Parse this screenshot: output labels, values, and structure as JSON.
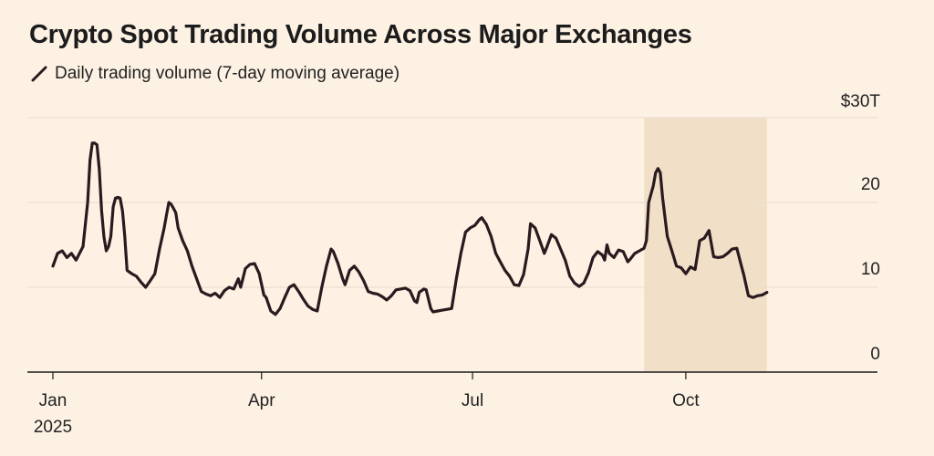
{
  "chart_data": {
    "type": "line",
    "title": "Crypto Spot Trading Volume Across Major Exchanges",
    "series": [
      {
        "name": "Daily trading volume (7-day moving average)",
        "unit": "trillion USD",
        "points": [
          [
            0,
            12.5
          ],
          [
            2,
            14
          ],
          [
            4,
            14.3
          ],
          [
            6,
            13.5
          ],
          [
            8,
            14
          ],
          [
            10,
            13.2
          ],
          [
            13,
            14.8
          ],
          [
            15,
            20
          ],
          [
            16,
            25
          ],
          [
            17,
            27
          ],
          [
            18,
            27
          ],
          [
            19,
            26.8
          ],
          [
            20,
            24
          ],
          [
            21,
            19
          ],
          [
            22,
            16
          ],
          [
            23,
            14.3
          ],
          [
            24,
            14.8
          ],
          [
            25,
            16
          ],
          [
            26,
            19.5
          ],
          [
            27,
            20.5
          ],
          [
            28,
            20.6
          ],
          [
            29,
            20.5
          ],
          [
            30,
            19
          ],
          [
            31,
            16
          ],
          [
            32,
            12
          ],
          [
            34,
            11.6
          ],
          [
            36,
            11.3
          ],
          [
            38,
            10.6
          ],
          [
            40,
            10
          ],
          [
            42,
            10.8
          ],
          [
            44,
            11.6
          ],
          [
            46,
            14.5
          ],
          [
            48,
            17
          ],
          [
            49,
            18.5
          ],
          [
            50,
            20
          ],
          [
            51,
            19.8
          ],
          [
            52,
            19.3
          ],
          [
            53,
            18.8
          ],
          [
            54,
            17
          ],
          [
            56,
            15.5
          ],
          [
            58,
            14.3
          ],
          [
            60,
            12.5
          ],
          [
            62,
            11
          ],
          [
            64,
            9.5
          ],
          [
            66,
            9.2
          ],
          [
            68,
            9
          ],
          [
            70,
            9.3
          ],
          [
            72,
            8.8
          ],
          [
            74,
            9.6
          ],
          [
            76,
            10
          ],
          [
            78,
            9.8
          ],
          [
            80,
            11
          ],
          [
            81,
            10
          ],
          [
            83,
            12.2
          ],
          [
            85,
            12.7
          ],
          [
            87,
            12.8
          ],
          [
            89,
            11.6
          ],
          [
            91,
            9.1
          ],
          [
            92,
            8.8
          ],
          [
            94,
            7.2
          ],
          [
            96,
            6.8
          ],
          [
            98,
            7.5
          ],
          [
            100,
            8.8
          ],
          [
            102,
            10
          ],
          [
            104,
            10.3
          ],
          [
            106,
            9.5
          ],
          [
            108,
            8.6
          ],
          [
            110,
            7.8
          ],
          [
            112,
            7.4
          ],
          [
            114,
            7.2
          ],
          [
            116,
            10
          ],
          [
            118,
            12.5
          ],
          [
            120,
            14.5
          ],
          [
            121,
            14.2
          ],
          [
            123,
            12.8
          ],
          [
            125,
            11
          ],
          [
            126,
            10.3
          ],
          [
            128,
            12
          ],
          [
            130,
            12.5
          ],
          [
            132,
            11.8
          ],
          [
            134,
            10.8
          ],
          [
            136,
            9.5
          ],
          [
            138,
            9.3
          ],
          [
            140,
            9.2
          ],
          [
            142,
            8.9
          ],
          [
            144,
            8.5
          ],
          [
            146,
            9
          ],
          [
            148,
            9.7
          ],
          [
            150,
            9.8
          ],
          [
            152,
            9.9
          ],
          [
            154,
            9.6
          ],
          [
            156,
            8.4
          ],
          [
            157,
            8.2
          ],
          [
            158,
            9.4
          ],
          [
            160,
            9.8
          ],
          [
            161,
            9.7
          ],
          [
            163,
            7.5
          ],
          [
            164,
            7.1
          ],
          [
            166,
            7.2
          ],
          [
            168,
            7.3
          ],
          [
            170,
            7.4
          ],
          [
            172,
            7.5
          ],
          [
            174,
            11
          ],
          [
            176,
            14
          ],
          [
            178,
            16.5
          ],
          [
            180,
            17
          ],
          [
            182,
            17.3
          ],
          [
            184,
            18
          ],
          [
            185,
            18.2
          ],
          [
            187,
            17.4
          ],
          [
            189,
            16
          ],
          [
            191,
            14
          ],
          [
            193,
            13
          ],
          [
            195,
            12
          ],
          [
            197,
            11.3
          ],
          [
            199,
            10.3
          ],
          [
            201,
            10.2
          ],
          [
            203,
            11.5
          ],
          [
            205,
            14.5
          ],
          [
            206,
            17.5
          ],
          [
            208,
            17
          ],
          [
            210,
            15.5
          ],
          [
            212,
            14
          ],
          [
            213,
            14.7
          ],
          [
            215,
            16.2
          ],
          [
            217,
            15.8
          ],
          [
            219,
            14.5
          ],
          [
            221,
            13.2
          ],
          [
            223,
            11.3
          ],
          [
            225,
            10.5
          ],
          [
            227,
            10.1
          ],
          [
            229,
            10.5
          ],
          [
            231,
            11.7
          ],
          [
            233,
            13.5
          ],
          [
            235,
            14.2
          ],
          [
            237,
            13.8
          ],
          [
            238,
            13.2
          ],
          [
            239,
            15
          ],
          [
            240,
            14
          ],
          [
            242,
            13.5
          ],
          [
            244,
            14.4
          ],
          [
            246,
            14.2
          ],
          [
            248,
            13
          ],
          [
            249,
            13.3
          ],
          [
            251,
            14
          ],
          [
            253,
            14.3
          ],
          [
            255,
            14.6
          ],
          [
            256,
            15.5
          ],
          [
            257,
            20
          ],
          [
            259,
            22
          ],
          [
            260,
            23.5
          ],
          [
            261,
            24
          ],
          [
            262,
            23.5
          ],
          [
            263,
            20.5
          ],
          [
            265,
            16
          ],
          [
            267,
            14.3
          ],
          [
            269,
            12.5
          ],
          [
            271,
            12.3
          ],
          [
            273,
            11.6
          ],
          [
            275,
            12.4
          ],
          [
            277,
            12.1
          ],
          [
            279,
            15.5
          ],
          [
            281,
            15.8
          ],
          [
            283,
            16.7
          ],
          [
            285,
            13.6
          ],
          [
            287,
            13.5
          ],
          [
            289,
            13.6
          ],
          [
            291,
            14
          ],
          [
            293,
            14.5
          ],
          [
            295,
            14.6
          ],
          [
            297,
            12.5
          ],
          [
            298,
            11.5
          ],
          [
            300,
            9
          ],
          [
            302,
            8.8
          ],
          [
            304,
            9
          ],
          [
            306,
            9.1
          ],
          [
            308,
            9.4
          ]
        ]
      }
    ],
    "x_axis": {
      "unit": "days since Jan 1, 2025",
      "range": [
        0,
        365
      ],
      "ticks": [
        {
          "value": 0,
          "label": "Jan",
          "sublabel": "2025"
        },
        {
          "value": 90,
          "label": "Apr",
          "sublabel": ""
        },
        {
          "value": 181,
          "label": "Jul",
          "sublabel": ""
        },
        {
          "value": 273,
          "label": "Oct",
          "sublabel": ""
        }
      ]
    },
    "y_axis": {
      "range": [
        0,
        30
      ],
      "ticks": [
        {
          "value": 0,
          "label": "0"
        },
        {
          "value": 10,
          "label": "10"
        },
        {
          "value": 20,
          "label": "20"
        },
        {
          "value": 30,
          "label": "$30T"
        }
      ],
      "grid": true
    },
    "highlight_range": [
      255,
      308
    ],
    "colors": {
      "line": "#2a1a1f",
      "grid": "#e9dccb",
      "axis": "#1a1a1a",
      "highlight": "#f2dfc8",
      "background": "#fcf1e3"
    }
  }
}
